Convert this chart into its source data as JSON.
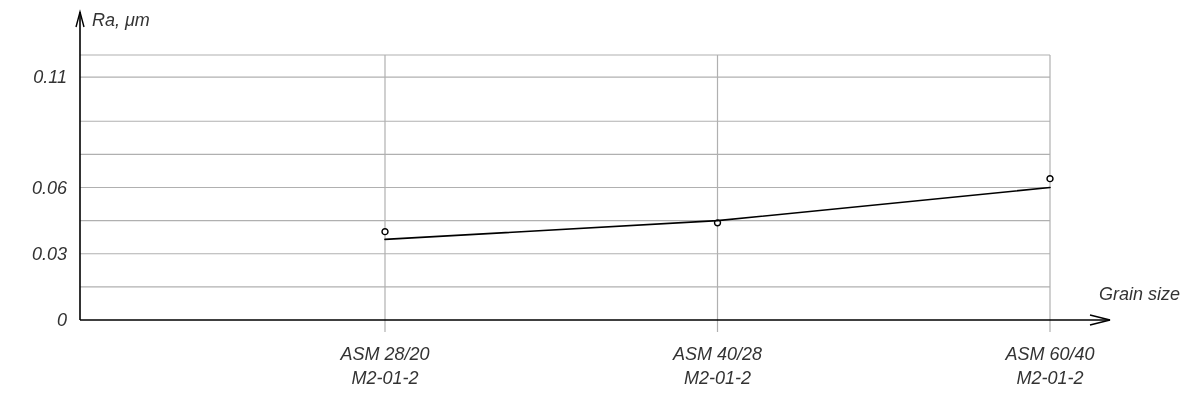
{
  "chart_data": {
    "type": "line",
    "xlabel": "Grain size",
    "ylabel": "Ra, μm",
    "categories": [
      "ASM 28/20\nM2-01-2",
      "ASM 40/28\nM2-01-2",
      "ASM 60/40\nM2-01-2"
    ],
    "series": [
      {
        "type": "scatter",
        "color": "#000000",
        "marker": "circle",
        "values": [
          0.04,
          0.044,
          0.064
        ]
      },
      {
        "color": "#000000",
        "marker": "none",
        "line_style": "solid",
        "values": [
          0.0365,
          0.045,
          0.06
        ]
      }
    ],
    "ylim": [
      0,
      0.12
    ],
    "yticks": [
      0,
      {
        "value": 0.015,
        "label": null
      },
      0.03,
      {
        "value": 0.045,
        "label": null
      },
      0.06,
      {
        "value": 0.075,
        "label": null
      },
      {
        "value": 0.09,
        "label": null
      },
      0.11,
      {
        "value": 0.12,
        "label": null
      }
    ],
    "grid": true
  }
}
